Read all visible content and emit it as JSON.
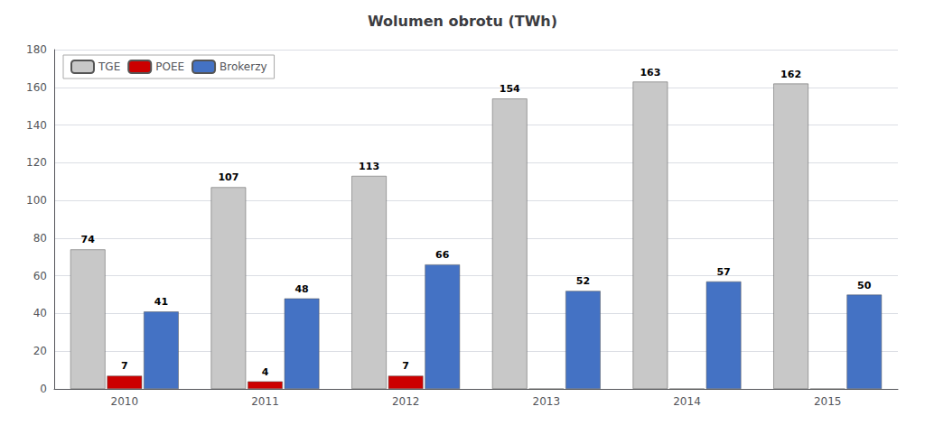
{
  "chart_data": {
    "type": "bar",
    "title": "Wolumen obrotu (TWh)",
    "categories": [
      "2010",
      "2011",
      "2012",
      "2013",
      "2014",
      "2015"
    ],
    "series": [
      {
        "name": "TGE",
        "color": "#c8c8c8",
        "values": [
          74,
          107,
          113,
          154,
          163,
          162
        ]
      },
      {
        "name": "POEE",
        "color": "#cc0000",
        "values": [
          7,
          4,
          7,
          0,
          0,
          0
        ],
        "value_labels": [
          "7",
          "4",
          "7",
          null,
          null,
          null
        ]
      },
      {
        "name": "Brokerzy",
        "color": "#4472c4",
        "values": [
          41,
          48,
          66,
          52,
          57,
          50
        ]
      }
    ],
    "ylim": [
      0,
      180
    ],
    "yticks": [
      0,
      20,
      40,
      60,
      80,
      100,
      120,
      140,
      160,
      180
    ],
    "grid": true,
    "legend": "upper left",
    "data_labels": true
  }
}
